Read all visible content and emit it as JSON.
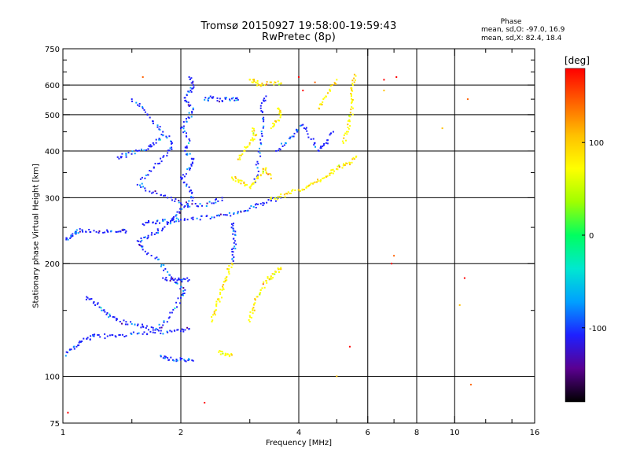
{
  "chart_data": {
    "type": "scatter",
    "title": "Tromsø 20150927 19:58:00-19:59:43",
    "subtitle": "RwPretec (8p)",
    "xlabel": "Frequency [MHz]",
    "ylabel": "Stationary phase Virtual Height [km]",
    "x_scale": "log",
    "y_scale": "log",
    "xlim": [
      1,
      16
    ],
    "ylim": [
      75,
      750
    ],
    "x_ticks": [
      1,
      2,
      4,
      6,
      8,
      10,
      16
    ],
    "x_tick_labels": [
      "1",
      "2",
      "4",
      "6",
      "8",
      "10",
      "16"
    ],
    "x_minor_ticks": [
      1.5,
      3,
      5,
      7,
      12,
      14
    ],
    "x_gridlines": [
      2,
      4,
      6,
      8,
      10
    ],
    "y_ticks": [
      75,
      100,
      200,
      300,
      400,
      500,
      600,
      750
    ],
    "y_tick_labels": [
      "75",
      "100",
      "200",
      "300",
      "400",
      "500",
      "600",
      "750"
    ],
    "y_minor_ticks": [
      150,
      250,
      350,
      450,
      550,
      650,
      700
    ],
    "y_gridlines": [
      100,
      200,
      300,
      400,
      500,
      600
    ],
    "grid": true,
    "phase_stats": {
      "heading": "Phase",
      "o_line": "mean, sd,O: -97.0, 16.9",
      "x_line": "mean, sd,X: 82.4, 18.4"
    },
    "colorbar": {
      "label": "[deg]",
      "range": [
        -180,
        180
      ],
      "ticks": [
        100,
        0,
        -100
      ],
      "tick_labels": [
        "100",
        "0",
        "-100"
      ],
      "colors": [
        "#000000",
        "#5a0090",
        "#1e20ff",
        "#00a0ff",
        "#00e8d0",
        "#00ff60",
        "#a0ff00",
        "#ffff00",
        "#ffc000",
        "#ff6000",
        "#ff0000"
      ]
    },
    "series": [
      {
        "mode": "O",
        "phase_deg": -100,
        "traces": [
          {
            "points": [
              [
                1.0,
                113
              ],
              [
                1.05,
                118
              ],
              [
                1.1,
                123
              ],
              [
                1.15,
                126
              ],
              [
                1.2,
                128
              ],
              [
                1.3,
                128
              ],
              [
                1.4,
                129
              ],
              [
                1.55,
                130
              ],
              [
                1.7,
                131
              ],
              [
                1.85,
                131
              ],
              [
                2.0,
                132
              ],
              [
                2.1,
                134
              ]
            ]
          },
          {
            "points": [
              [
                1.02,
                232
              ],
              [
                1.05,
                238
              ],
              [
                1.08,
                243
              ],
              [
                1.12,
                246
              ],
              [
                1.2,
                245
              ],
              [
                1.3,
                244
              ],
              [
                1.4,
                244
              ],
              [
                1.45,
                244
              ]
            ]
          },
          {
            "points": [
              [
                1.6,
                255
              ],
              [
                1.7,
                258
              ],
              [
                1.8,
                260
              ],
              [
                1.9,
                261
              ],
              [
                2.0,
                262
              ],
              [
                2.2,
                264
              ],
              [
                2.4,
                266
              ],
              [
                2.6,
                270
              ],
              [
                2.8,
                275
              ],
              [
                3.0,
                281
              ],
              [
                3.2,
                289
              ],
              [
                3.4,
                295
              ],
              [
                3.6,
                300
              ]
            ]
          },
          {
            "points": [
              [
                1.8,
                183
              ],
              [
                1.9,
                182
              ],
              [
                2.0,
                181
              ],
              [
                2.1,
                181
              ]
            ]
          },
          {
            "points": [
              [
                1.78,
                113
              ],
              [
                1.85,
                112
              ],
              [
                1.95,
                111
              ],
              [
                2.05,
                110
              ],
              [
                2.15,
                110
              ]
            ]
          },
          {
            "points": [
              [
                1.15,
                163
              ],
              [
                1.2,
                158
              ],
              [
                1.27,
                150
              ],
              [
                1.32,
                145
              ],
              [
                1.4,
                140
              ],
              [
                1.5,
                138
              ],
              [
                1.6,
                136
              ],
              [
                1.7,
                133
              ],
              [
                1.8,
                137
              ],
              [
                1.9,
                148
              ],
              [
                2.0,
                162
              ],
              [
                2.05,
                170
              ],
              [
                1.95,
                178
              ],
              [
                1.85,
                190
              ],
              [
                1.75,
                205
              ],
              [
                1.6,
                218
              ],
              [
                1.55,
                230
              ],
              [
                1.65,
                235
              ],
              [
                1.75,
                245
              ],
              [
                1.85,
                255
              ],
              [
                1.95,
                270
              ],
              [
                2.05,
                285
              ],
              [
                2.15,
                300
              ],
              [
                2.1,
                320
              ],
              [
                2.0,
                340
              ],
              [
                2.1,
                360
              ],
              [
                2.15,
                380
              ],
              [
                2.05,
                400
              ],
              [
                2.1,
                430
              ],
              [
                2.0,
                460
              ],
              [
                2.1,
                490
              ],
              [
                2.15,
                520
              ],
              [
                2.05,
                545
              ],
              [
                2.1,
                575
              ],
              [
                2.15,
                600
              ],
              [
                2.1,
                630
              ]
            ]
          },
          {
            "points": [
              [
                1.5,
                550
              ],
              [
                1.6,
                520
              ],
              [
                1.7,
                480
              ],
              [
                1.8,
                450
              ],
              [
                1.9,
                420
              ],
              [
                1.85,
                395
              ],
              [
                1.75,
                370
              ],
              [
                1.65,
                345
              ],
              [
                1.55,
                325
              ],
              [
                1.7,
                310
              ],
              [
                1.85,
                300
              ],
              [
                2.0,
                290
              ],
              [
                2.2,
                285
              ],
              [
                2.4,
                290
              ],
              [
                2.55,
                300
              ]
            ]
          },
          {
            "points": [
              [
                2.3,
                548
              ],
              [
                2.4,
                555
              ],
              [
                2.55,
                545
              ],
              [
                2.7,
                552
              ],
              [
                2.8,
                548
              ]
            ]
          },
          {
            "points": [
              [
                1.38,
                385
              ],
              [
                1.45,
                390
              ],
              [
                1.55,
                400
              ],
              [
                1.65,
                405
              ],
              [
                1.7,
                420
              ],
              [
                1.8,
                440
              ]
            ]
          },
          {
            "points": [
              [
                2.7,
                200
              ],
              [
                2.72,
                215
              ],
              [
                2.75,
                230
              ],
              [
                2.73,
                245
              ],
              [
                2.7,
                255
              ]
            ]
          },
          {
            "points": [
              [
                3.1,
                330
              ],
              [
                3.15,
                370
              ],
              [
                3.2,
                420
              ],
              [
                3.25,
                480
              ],
              [
                3.2,
                520
              ],
              [
                3.3,
                560
              ]
            ]
          },
          {
            "points": [
              [
                3.5,
                400
              ],
              [
                3.7,
                420
              ],
              [
                3.9,
                445
              ],
              [
                4.1,
                470
              ],
              [
                4.3,
                430
              ],
              [
                4.5,
                400
              ],
              [
                4.7,
                420
              ],
              [
                4.9,
                450
              ]
            ]
          }
        ]
      },
      {
        "mode": "X",
        "phase_deg": 82,
        "traces": [
          {
            "points": [
              [
                3.4,
                298
              ],
              [
                3.6,
                302
              ],
              [
                3.8,
                308
              ],
              [
                4.0,
                315
              ],
              [
                4.2,
                322
              ],
              [
                4.4,
                330
              ],
              [
                4.6,
                338
              ],
              [
                4.8,
                348
              ],
              [
                5.0,
                358
              ],
              [
                5.2,
                366
              ],
              [
                5.4,
                372
              ],
              [
                5.6,
                385
              ]
            ]
          },
          {
            "points": [
              [
                5.2,
                420
              ],
              [
                5.3,
                450
              ],
              [
                5.4,
                480
              ],
              [
                5.5,
                520
              ],
              [
                5.45,
                560
              ],
              [
                5.5,
                600
              ],
              [
                5.55,
                640
              ]
            ]
          },
          {
            "points": [
              [
                2.7,
                340
              ],
              [
                2.8,
                335
              ],
              [
                2.9,
                328
              ],
              [
                3.0,
                320
              ],
              [
                3.1,
                332
              ],
              [
                3.2,
                345
              ],
              [
                3.3,
                360
              ],
              [
                3.4,
                338
              ]
            ]
          },
          {
            "points": [
              [
                2.8,
                380
              ],
              [
                2.9,
                400
              ],
              [
                3.0,
                420
              ],
              [
                3.1,
                440
              ],
              [
                3.05,
                460
              ]
            ]
          },
          {
            "points": [
              [
                3.4,
                460
              ],
              [
                3.5,
                480
              ],
              [
                3.6,
                500
              ],
              [
                3.55,
                520
              ]
            ]
          },
          {
            "points": [
              [
                2.4,
                140
              ],
              [
                2.45,
                150
              ],
              [
                2.5,
                160
              ],
              [
                2.55,
                170
              ],
              [
                2.6,
                180
              ],
              [
                2.65,
                190
              ],
              [
                2.7,
                200
              ]
            ]
          },
          {
            "points": [
              [
                3.0,
                140
              ],
              [
                3.05,
                150
              ],
              [
                3.1,
                160
              ],
              [
                3.2,
                170
              ],
              [
                3.3,
                180
              ],
              [
                3.4,
                185
              ],
              [
                3.5,
                190
              ],
              [
                3.6,
                195
              ]
            ]
          },
          {
            "points": [
              [
                3.0,
                620
              ],
              [
                3.1,
                610
              ],
              [
                3.2,
                600
              ],
              [
                3.4,
                610
              ],
              [
                3.6,
                605
              ]
            ]
          },
          {
            "points": [
              [
                2.5,
                116
              ],
              [
                2.6,
                115
              ],
              [
                2.7,
                114
              ]
            ]
          },
          {
            "points": [
              [
                4.5,
                520
              ],
              [
                4.6,
                540
              ],
              [
                4.8,
                580
              ],
              [
                5.0,
                620
              ]
            ]
          }
        ]
      },
      {
        "mode": "scattered",
        "phase_deg": 160,
        "points": [
          [
            1.6,
            630
          ],
          [
            4.0,
            630
          ],
          [
            5.0,
            100
          ],
          [
            1.03,
            80
          ],
          [
            6.6,
            580
          ],
          [
            7.1,
            630
          ],
          [
            6.6,
            620
          ],
          [
            9.3,
            460
          ],
          [
            10.6,
            183
          ],
          [
            10.8,
            550
          ],
          [
            11.0,
            95
          ],
          [
            10.3,
            155
          ],
          [
            7.0,
            210
          ],
          [
            6.9,
            200
          ],
          [
            4.4,
            610
          ],
          [
            4.1,
            580
          ],
          [
            5.4,
            120
          ],
          [
            2.3,
            85
          ]
        ]
      }
    ]
  }
}
